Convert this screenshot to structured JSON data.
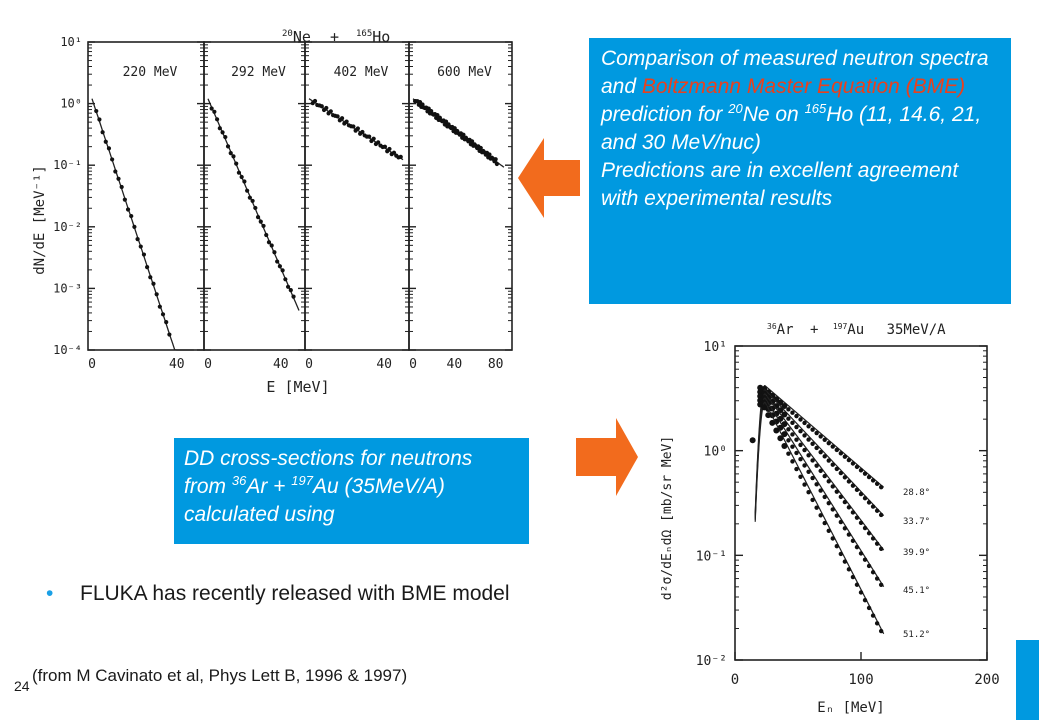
{
  "callout_top": {
    "line1": "Comparison of measured neutron spectra and ",
    "highlight": "Boltzmann Master Equation (BME)",
    "line2": " prediction for ",
    "ne_mass": "20",
    "ne_text": "Ne on ",
    "ho_mass": "165",
    "ho_text": "Ho (11, 14.6, 21, and 30 MeV/nuc)",
    "line3": "Predictions are in excellent agreement with experimental results",
    "highlight_color": "#e8411e"
  },
  "callout_bottom": {
    "pre": "DD cross-sections for neutrons from ",
    "ar_mass": "36",
    "ar_text": "Ar + ",
    "au_mass": "197",
    "au_text": "Au (35MeV/A) calculated using"
  },
  "bullet": {
    "text": "FLUKA has recently released with BME model"
  },
  "reference": "(from M Cavinato et al, Phys Lett B, 1996 & 1997)",
  "slide_number": "24",
  "colors": {
    "accent": "#0099e0",
    "arrow": "#f26b1d"
  },
  "left_figure": {
    "title": "20Ne + 165Ho",
    "title_parts": {
      "a_mass": "20",
      "a": "Ne",
      "plus": "+",
      "b_mass": "165",
      "b": "Ho"
    },
    "ylabel": "dN/dE  [MeV⁻¹]",
    "xlabel": "E [MeV]",
    "yticks": [
      "10¹",
      "10⁰",
      "10⁻¹",
      "10⁻²",
      "10⁻³",
      "10⁻⁴"
    ],
    "panels": [
      {
        "label": "220 MeV",
        "xticks": [
          "0",
          "40"
        ]
      },
      {
        "label": "292 MeV",
        "xticks": [
          "0",
          "40"
        ]
      },
      {
        "label": "402 MeV",
        "xticks": [
          "0",
          "40"
        ]
      },
      {
        "label": "600 MeV",
        "xticks": [
          "0",
          "40",
          "80"
        ]
      }
    ]
  },
  "right_figure": {
    "title": "36Ar + 197Au  35MeV/A",
    "title_parts": {
      "a_mass": "36",
      "a": "Ar",
      "plus": "+",
      "b_mass": "197",
      "b": "Au",
      "energy": "35MeV/A"
    },
    "ylabel": "d²σ/dEₙdΩ  [mb/sr MeV]",
    "xlabel": "Eₙ [MeV]",
    "yticks": [
      "10¹",
      "10⁰",
      "10⁻¹",
      "10⁻²"
    ],
    "xticks": [
      "0",
      "100",
      "200"
    ],
    "angles": [
      "28.8°",
      "33.7°",
      "39.9°",
      "45.1°",
      "51.2°"
    ]
  }
}
